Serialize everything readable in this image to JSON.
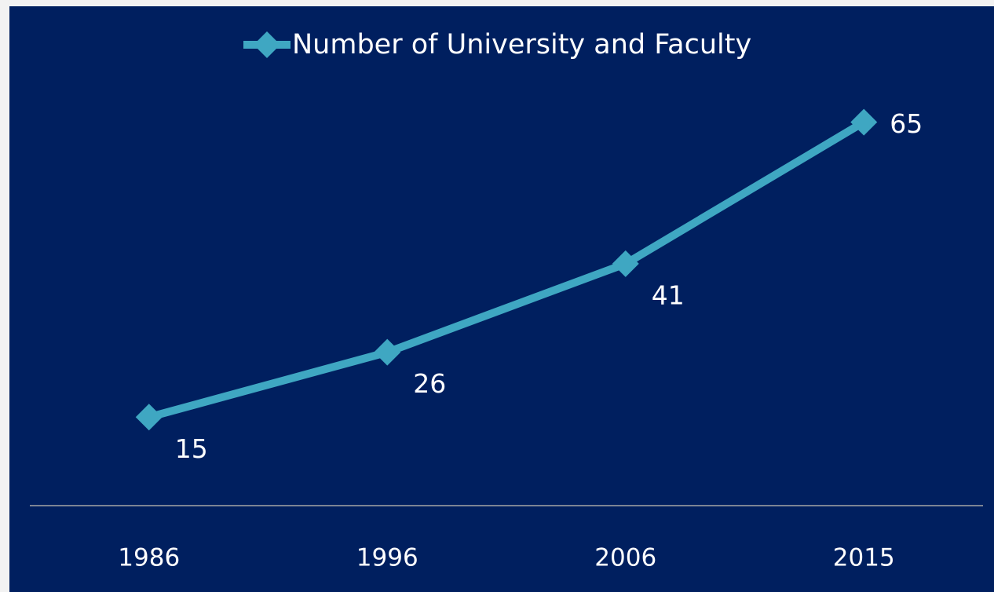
{
  "chart_data": {
    "type": "line",
    "categories": [
      "1986",
      "1996",
      "2006",
      "2015"
    ],
    "series": [
      {
        "name": "Number of University and Faculty",
        "color": "#3fa7c2",
        "values": [
          15,
          26,
          41,
          65
        ]
      }
    ],
    "ylim": [
      0,
      70
    ],
    "legend": "top"
  }
}
